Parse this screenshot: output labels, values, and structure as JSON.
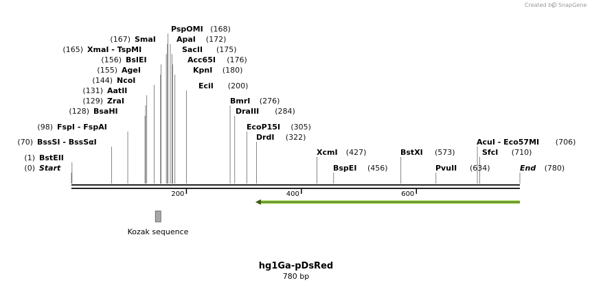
{
  "credit": {
    "text": "Created by",
    "brand": "SnapGene"
  },
  "plasmid": {
    "name": "hg1Ga-pDsRed",
    "length_label": "780 bp",
    "length": 780
  },
  "ticks": [
    {
      "value": 200,
      "label": "200"
    },
    {
      "value": 400,
      "label": "400"
    },
    {
      "value": 600,
      "label": "600"
    }
  ],
  "features": [
    {
      "name": "Kozak sequence",
      "start": 146,
      "end": 155,
      "color": "#a8a8a8",
      "kind": "box"
    },
    {
      "name": "",
      "start": 320,
      "end": 780,
      "color": "#9bd14a",
      "kind": "arrow-left"
    }
  ],
  "sites": [
    {
      "pos": 0,
      "pos_label": "(0)",
      "name": "Start",
      "italic": true
    },
    {
      "pos": 1,
      "pos_label": "(1)",
      "name": "BstEII"
    },
    {
      "pos": 70,
      "pos_label": "(70)",
      "name": "BssSI - BssSαI"
    },
    {
      "pos": 98,
      "pos_label": "(98)",
      "name": "FspI - FspAI"
    },
    {
      "pos": 128,
      "pos_label": "(128)",
      "name": "BsaHI"
    },
    {
      "pos": 129,
      "pos_label": "(129)",
      "name": "ZraI"
    },
    {
      "pos": 131,
      "pos_label": "(131)",
      "name": "AatII"
    },
    {
      "pos": 144,
      "pos_label": "(144)",
      "name": "NcoI"
    },
    {
      "pos": 155,
      "pos_label": "(155)",
      "name": "AgeI"
    },
    {
      "pos": 156,
      "pos_label": "(156)",
      "name": "BsIEI"
    },
    {
      "pos": 165,
      "pos_label": "(165)",
      "name": "XmaI - TspMI"
    },
    {
      "pos": 167,
      "pos_label": "(167)",
      "name": "SmaI"
    },
    {
      "pos": 168,
      "pos_label": "(168)",
      "name": "PspOMI"
    },
    {
      "pos": 172,
      "pos_label": "(172)",
      "name": "ApaI"
    },
    {
      "pos": 175,
      "pos_label": "(175)",
      "name": "SacII"
    },
    {
      "pos": 176,
      "pos_label": "(176)",
      "name": "Acc65I"
    },
    {
      "pos": 180,
      "pos_label": "(180)",
      "name": "KpnI"
    },
    {
      "pos": 200,
      "pos_label": "(200)",
      "name": "EciI"
    },
    {
      "pos": 276,
      "pos_label": "(276)",
      "name": "BmrI"
    },
    {
      "pos": 284,
      "pos_label": "(284)",
      "name": "DraIII"
    },
    {
      "pos": 305,
      "pos_label": "(305)",
      "name": "EcoP15I"
    },
    {
      "pos": 322,
      "pos_label": "(322)",
      "name": "DrdI"
    },
    {
      "pos": 427,
      "pos_label": "(427)",
      "name": "XcmI"
    },
    {
      "pos": 456,
      "pos_label": "(456)",
      "name": "BspEI"
    },
    {
      "pos": 573,
      "pos_label": "(573)",
      "name": "BstXI"
    },
    {
      "pos": 634,
      "pos_label": "(634)",
      "name": "PvuII"
    },
    {
      "pos": 706,
      "pos_label": "(706)",
      "name": "AcuI - Eco57MI"
    },
    {
      "pos": 710,
      "pos_label": "(710)",
      "name": "SfcI"
    },
    {
      "pos": 780,
      "pos_label": "(780)",
      "name": "End",
      "italic": true
    }
  ]
}
